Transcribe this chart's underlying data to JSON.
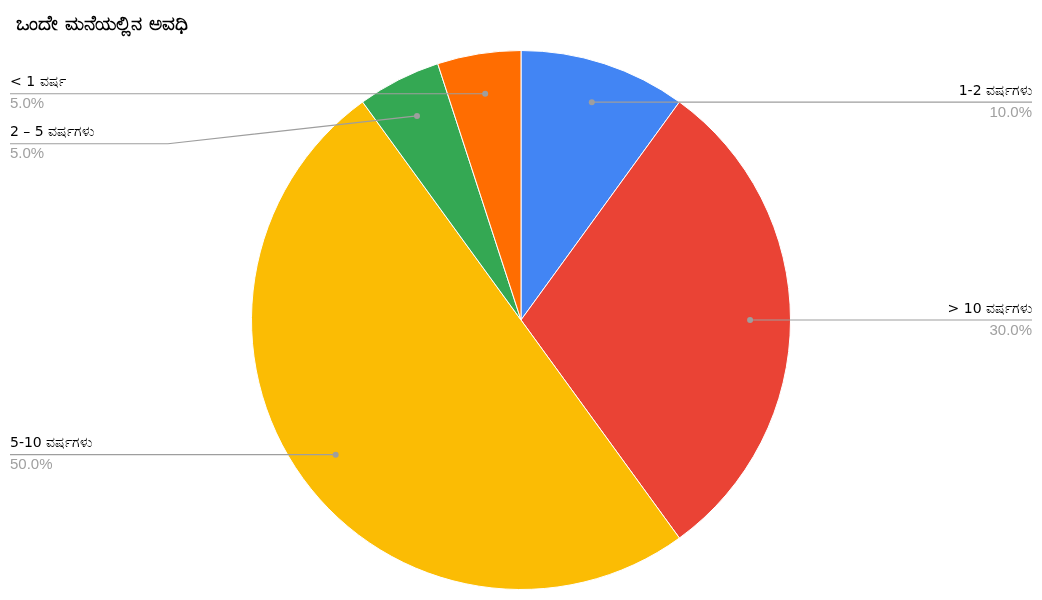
{
  "chart_data": {
    "type": "pie",
    "title": "ಒಂದೇ ಮನೆಯಲ್ಲಿನ ಅವಧಿ",
    "categories": [
      "1-2 ವರ್ಷಗಳು",
      "> 10 ವರ್ಷಗಳು",
      "5-10 ವರ್ಷಗಳು",
      "2 – 5 ವರ್ಷಗಳು",
      "< 1 ವರ್ಷ"
    ],
    "values": [
      10,
      30,
      50,
      5,
      5
    ],
    "colors": [
      "#4285f4",
      "#ea4335",
      "#fbbc04",
      "#34a853",
      "#ff6d01"
    ],
    "value_labels": [
      "10.0%",
      "30.0%",
      "50.0%",
      "5.0%",
      "5.0%"
    ],
    "legend": false
  }
}
